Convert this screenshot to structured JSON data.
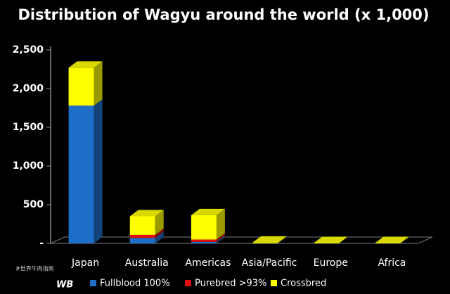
{
  "chart_data": {
    "type": "bar",
    "stacked": true,
    "title": "Distribution of Wagyu around the world (x 1,000)",
    "categories": [
      "Japan",
      "Australia",
      "Americas",
      "Asia/Pacific",
      "Europe",
      "Africa"
    ],
    "series": [
      {
        "name": "Fullblood 100%",
        "color": "#1f6fc8",
        "values": [
          1780,
          70,
          20,
          0,
          0,
          0
        ]
      },
      {
        "name": "Purebred >93%",
        "color": "#e01010",
        "values": [
          0,
          40,
          30,
          0,
          0,
          0
        ]
      },
      {
        "name": "Crossbred",
        "color": "#ffff00",
        "values": [
          490,
          240,
          315,
          10,
          5,
          5
        ]
      }
    ],
    "ylim": [
      0,
      2500
    ],
    "yticks": [
      {
        "value": 0,
        "label": "-"
      },
      500,
      {
        "value": 1000,
        "label": "1,000"
      },
      {
        "value": 1500,
        "label": "1,500"
      },
      {
        "value": 2000,
        "label": "2,000"
      },
      {
        "value": 2500,
        "label": "2,500"
      }
    ],
    "watermark": "#世界牛肉指南",
    "logo": "WB"
  }
}
